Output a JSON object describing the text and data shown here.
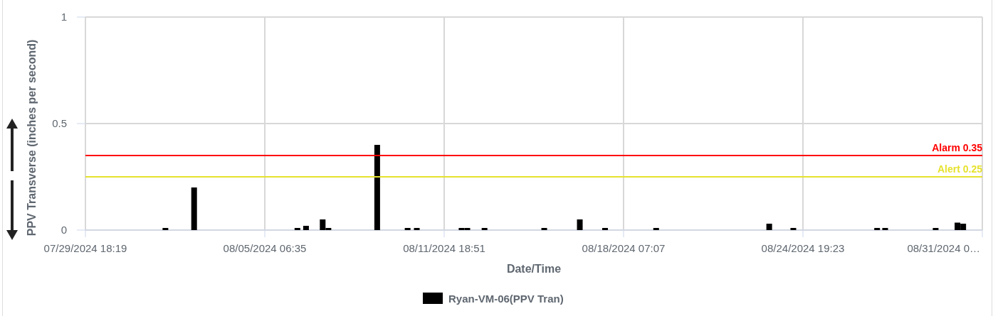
{
  "chart_data": {
    "type": "bar",
    "xlabel": "Date/Time",
    "ylabel": "PPV Transverse (inches per second)",
    "x": [
      "2024-08-01T16:00",
      "2024-08-02T17:00",
      "2024-08-06T11:00",
      "2024-08-06T18:30",
      "2024-08-07T09:00",
      "2024-08-07T14:00",
      "2024-08-09T08:30",
      "2024-08-10T11:00",
      "2024-08-10T19:00",
      "2024-08-12T10:00",
      "2024-08-12T15:00",
      "2024-08-13T06:00",
      "2024-08-15T10:00",
      "2024-08-16T17:00",
      "2024-08-17T15:00",
      "2024-08-19T11:30",
      "2024-08-23T14:00",
      "2024-08-24T11:00",
      "2024-08-27T12:00",
      "2024-08-27T19:00",
      "2024-08-29T15:00",
      "2024-08-30T10:00",
      "2024-08-30T15:00"
    ],
    "series": [
      {
        "name": "Ryan-VM-06(PPV Tran)",
        "color": "#000000",
        "values": [
          0.01,
          0.2,
          0.01,
          0.02,
          0.05,
          0.01,
          0.4,
          0.01,
          0.01,
          0.01,
          0.01,
          0.01,
          0.01,
          0.05,
          0.01,
          0.01,
          0.03,
          0.01,
          0.01,
          0.01,
          0.01,
          0.035,
          0.03
        ]
      }
    ],
    "xlim": [
      "2024-07-29T18:19",
      "2024-08-31T07:39"
    ],
    "xticks": [
      {
        "value": "2024-07-29T18:19",
        "label": "07/29/2024 18:19"
      },
      {
        "value": "2024-08-05T06:35",
        "label": "08/05/2024 06:35"
      },
      {
        "value": "2024-08-11T18:51",
        "label": "08/11/2024 18:51"
      },
      {
        "value": "2024-08-18T07:07",
        "label": "08/18/2024 07:07"
      },
      {
        "value": "2024-08-24T19:23",
        "label": "08/24/2024 19:23"
      },
      {
        "value": "2024-08-31T07:39",
        "label": "08/31/2024 0…"
      }
    ],
    "ylim": [
      0,
      1
    ],
    "yticks": [
      0,
      0.5,
      1
    ],
    "grid": true,
    "legend": "bottom",
    "ref_lines": [
      {
        "axis": "y",
        "value": 0.35,
        "label": "Alarm 0.35",
        "color": "#ff0000"
      },
      {
        "axis": "y",
        "value": 0.25,
        "label": "Alert 0.25",
        "color": "#e6e22e"
      }
    ]
  }
}
